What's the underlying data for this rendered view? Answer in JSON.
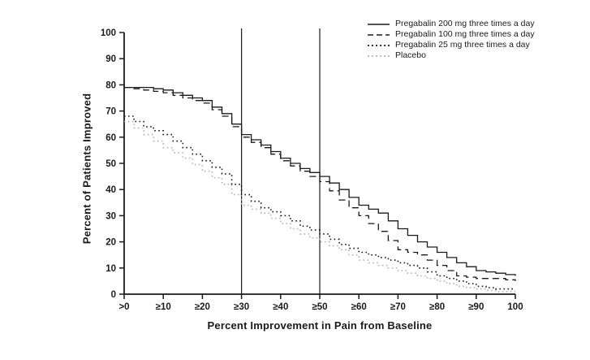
{
  "figure": {
    "background": "#ffffff",
    "axis_color": "#1a1a1a",
    "placebo_color": "#b3b3b3"
  },
  "chart_data": {
    "type": "line",
    "title": "",
    "xlabel": "Percent Improvement in Pain from Baseline",
    "ylabel": "Percent of Patients Improved",
    "xlim": [
      0,
      100
    ],
    "ylim": [
      0,
      100
    ],
    "grid": false,
    "legend_position": "top-right",
    "x_tick_values": [
      0,
      10,
      20,
      30,
      40,
      50,
      60,
      70,
      80,
      90,
      100
    ],
    "x_tick_labels": [
      ">0",
      "≥10",
      "≥20",
      "≥30",
      "≥40",
      "≥50",
      "≥60",
      "≥70",
      "≥80",
      "≥90",
      "100"
    ],
    "y_tick_values": [
      0,
      10,
      20,
      30,
      40,
      50,
      60,
      70,
      80,
      90,
      100
    ],
    "y_tick_labels": [
      "0",
      "10",
      "20",
      "30",
      "40",
      "50",
      "60",
      "70",
      "80",
      "90",
      "100"
    ],
    "reference_lines_x": [
      30,
      50
    ],
    "x": [
      0,
      5,
      10,
      15,
      20,
      25,
      30,
      35,
      40,
      45,
      50,
      55,
      60,
      65,
      70,
      75,
      80,
      85,
      90,
      95,
      100
    ],
    "series": [
      {
        "name": "Pregabalin 200 mg three times a day",
        "style": "solid",
        "color": "#1a1a1a",
        "values": [
          79,
          79,
          78,
          76,
          74,
          69,
          61,
          57,
          52,
          48,
          45,
          40,
          34,
          31,
          25,
          20,
          16,
          12,
          9,
          8,
          7
        ]
      },
      {
        "name": "Pregabalin 100 mg three times a day",
        "style": "dashed",
        "color": "#1a1a1a",
        "values": [
          79,
          78,
          77,
          75,
          73,
          68,
          60,
          56,
          51,
          47,
          43,
          36,
          30,
          24,
          17,
          15,
          11,
          7,
          6,
          6,
          5
        ]
      },
      {
        "name": "Pregabalin 25 mg three times a day",
        "style": "dotted",
        "color": "#1a1a1a",
        "values": [
          68,
          64,
          61,
          56,
          51,
          46,
          38,
          33,
          30,
          26,
          23,
          19,
          16,
          14,
          12,
          10,
          7,
          5,
          3,
          2,
          2
        ]
      },
      {
        "name": "Placebo",
        "style": "dotted",
        "color": "#b3b3b3",
        "values": [
          66,
          61,
          56,
          52,
          47,
          42,
          34,
          31,
          27,
          23,
          20,
          17,
          13,
          11,
          9,
          7,
          5,
          3,
          2,
          1,
          1
        ]
      }
    ]
  }
}
